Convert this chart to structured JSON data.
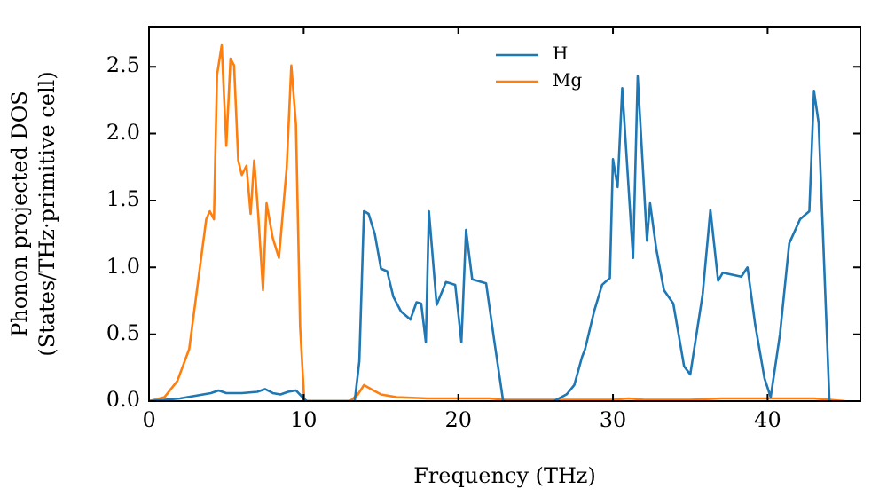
{
  "chart_data": {
    "type": "line",
    "xlabel": "Frequency (THz)",
    "ylabel": "Phonon projected DOS\n(States/THz·primitive cell)",
    "xlim": [
      0,
      46
    ],
    "xticks": [
      0,
      10,
      20,
      30,
      40
    ],
    "ylim": [
      0,
      2.8
    ],
    "yticks": [
      {
        "value": 0,
        "label": "0.0"
      },
      0.5,
      {
        "value": 1,
        "label": "1.0"
      },
      1.5,
      {
        "value": 2,
        "label": "2.0"
      },
      2.5
    ],
    "grid": false,
    "legend": "top",
    "marker": "none",
    "line_style": "solid",
    "series": [
      {
        "name": "H",
        "color": "#1f77b4",
        "x": [
          0,
          2,
          3,
          4,
          4.5,
          5,
          6,
          7,
          7.5,
          8,
          8.5,
          9,
          9.5,
          10,
          10.2,
          13.3,
          13.6,
          13.9,
          14.2,
          14.6,
          15.0,
          15.4,
          15.8,
          16.3,
          16.9,
          17.3,
          17.6,
          17.9,
          18.1,
          18.6,
          19.2,
          19.8,
          20.2,
          20.5,
          20.9,
          21.8,
          22.3,
          22.9,
          26.2,
          27,
          27.5,
          28.0,
          28.2,
          28.8,
          29.3,
          29.8,
          30.0,
          30.3,
          30.6,
          31.3,
          31.6,
          32.2,
          32.4,
          32.8,
          33.3,
          33.9,
          34.6,
          35.0,
          35.8,
          36.3,
          36.8,
          37.1,
          38.3,
          38.7,
          39.2,
          39.8,
          40.2,
          40.8,
          41.4,
          42.1,
          42.7,
          43.0,
          43.3,
          44.0
        ],
        "values": [
          0,
          0.02,
          0.04,
          0.06,
          0.08,
          0.06,
          0.06,
          0.07,
          0.09,
          0.06,
          0.05,
          0.07,
          0.08,
          0.02,
          0,
          0,
          0.3,
          1.42,
          1.4,
          1.25,
          0.99,
          0.97,
          0.78,
          0.67,
          0.61,
          0.74,
          0.73,
          0.44,
          1.42,
          0.72,
          0.89,
          0.87,
          0.44,
          1.28,
          0.91,
          0.88,
          0.47,
          0,
          0,
          0.05,
          0.12,
          0.33,
          0.39,
          0.68,
          0.87,
          0.92,
          1.81,
          1.6,
          2.34,
          1.07,
          2.43,
          1.2,
          1.48,
          1.14,
          0.83,
          0.73,
          0.26,
          0.2,
          0.8,
          1.43,
          0.9,
          0.96,
          0.93,
          1.0,
          0.57,
          0.17,
          0.03,
          0.5,
          1.18,
          1.36,
          1.42,
          2.32,
          2.08,
          0
        ]
      },
      {
        "name": "Mg",
        "color": "#ff7f0e",
        "x": [
          0,
          1,
          1.83,
          2.6,
          3.2,
          3.7,
          3.93,
          4.2,
          4.4,
          4.7,
          5.0,
          5.27,
          5.5,
          5.77,
          6.0,
          6.3,
          6.57,
          6.8,
          7.06,
          7.37,
          7.6,
          8.0,
          8.4,
          8.9,
          9.2,
          9.5,
          9.77,
          10.04,
          13.0,
          13.5,
          13.9,
          14.5,
          15,
          16,
          18,
          20,
          22,
          23,
          26,
          30,
          31,
          32,
          35,
          37,
          40,
          43,
          44,
          45
        ],
        "values": [
          0,
          0.03,
          0.15,
          0.39,
          0.92,
          1.36,
          1.42,
          1.36,
          2.44,
          2.66,
          1.91,
          2.56,
          2.51,
          1.8,
          1.69,
          1.76,
          1.4,
          1.8,
          1.4,
          0.83,
          1.48,
          1.22,
          1.07,
          1.74,
          2.51,
          2.07,
          0.56,
          0,
          0,
          0.05,
          0.12,
          0.08,
          0.05,
          0.03,
          0.02,
          0.02,
          0.02,
          0.01,
          0.01,
          0.01,
          0.02,
          0.01,
          0.01,
          0.02,
          0.02,
          0.02,
          0.01,
          0
        ]
      }
    ]
  }
}
